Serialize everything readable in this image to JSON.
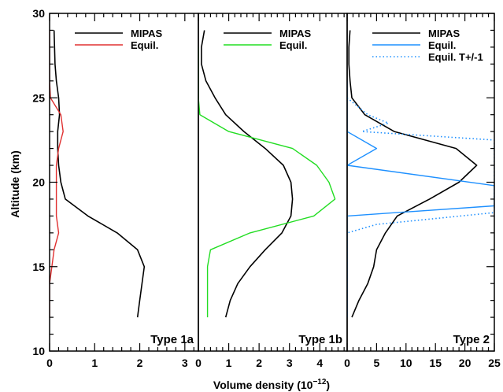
{
  "chart_data": {
    "type": "line",
    "ylabel": "Altitude (km)",
    "xlabel_main": "Volume density (10",
    "xlabel_sup": "−12",
    "xlabel_close": ")",
    "ylim": [
      10,
      30
    ],
    "yticks": [
      10,
      15,
      20,
      25,
      30
    ],
    "grid": false,
    "legend_position": "top-right",
    "panels": [
      {
        "label": "Type 1a",
        "xlim": [
          0,
          3.3
        ],
        "xticks": [
          0,
          1,
          2,
          3
        ],
        "series": [
          {
            "name": "MIPAS",
            "color": "#000000",
            "dash": "solid",
            "points": [
              [
                0.1,
                29
              ],
              [
                0.12,
                27
              ],
              [
                0.15,
                26
              ],
              [
                0.2,
                25
              ],
              [
                0.22,
                24
              ],
              [
                0.18,
                23
              ],
              [
                0.18,
                22
              ],
              [
                0.2,
                21
              ],
              [
                0.25,
                20
              ],
              [
                0.35,
                19
              ],
              [
                0.85,
                18
              ],
              [
                1.5,
                17
              ],
              [
                1.95,
                16
              ],
              [
                2.1,
                15
              ],
              [
                2.05,
                14
              ],
              [
                2.0,
                13
              ],
              [
                1.95,
                12
              ]
            ]
          },
          {
            "name": "Equil.",
            "color": "#e03030",
            "dash": "solid",
            "points": [
              [
                0.0,
                29
              ],
              [
                0.0,
                27
              ],
              [
                0.0,
                26
              ],
              [
                0.02,
                25
              ],
              [
                0.25,
                24
              ],
              [
                0.3,
                23
              ],
              [
                0.2,
                22
              ],
              [
                0.15,
                21
              ],
              [
                0.15,
                20
              ],
              [
                0.15,
                19
              ],
              [
                0.15,
                18
              ],
              [
                0.2,
                17
              ],
              [
                0.1,
                16
              ],
              [
                0.05,
                15
              ],
              [
                0.0,
                14
              ],
              [
                0.0,
                12
              ]
            ]
          }
        ]
      },
      {
        "label": "Type 1b",
        "xlim": [
          0,
          4.9
        ],
        "xticks": [
          0,
          1,
          2,
          3,
          4
        ],
        "series": [
          {
            "name": "MIPAS",
            "color": "#000000",
            "dash": "solid",
            "points": [
              [
                0.2,
                29
              ],
              [
                0.1,
                28
              ],
              [
                0.1,
                27
              ],
              [
                0.25,
                26
              ],
              [
                0.55,
                25
              ],
              [
                0.9,
                24
              ],
              [
                1.5,
                23
              ],
              [
                2.2,
                22
              ],
              [
                2.8,
                21
              ],
              [
                3.05,
                20
              ],
              [
                3.1,
                19
              ],
              [
                3.05,
                18
              ],
              [
                2.75,
                17
              ],
              [
                2.2,
                16
              ],
              [
                1.7,
                15
              ],
              [
                1.3,
                14
              ],
              [
                1.05,
                13
              ],
              [
                0.9,
                12
              ]
            ]
          },
          {
            "name": "Equil.",
            "color": "#22dd22",
            "dash": "solid",
            "points": [
              [
                0.0,
                28
              ],
              [
                0.0,
                26
              ],
              [
                0.0,
                25
              ],
              [
                0.05,
                24
              ],
              [
                1.0,
                23
              ],
              [
                3.1,
                22
              ],
              [
                3.9,
                21
              ],
              [
                4.3,
                20
              ],
              [
                4.5,
                19
              ],
              [
                3.8,
                18
              ],
              [
                1.7,
                17
              ],
              [
                0.4,
                16
              ],
              [
                0.3,
                15
              ],
              [
                0.3,
                13
              ],
              [
                0.3,
                12
              ]
            ]
          }
        ]
      },
      {
        "label": "Type 2",
        "xlim": [
          0,
          25
        ],
        "xticks": [
          0,
          5,
          10,
          15,
          20,
          25
        ],
        "series": [
          {
            "name": "MIPAS",
            "color": "#000000",
            "dash": "solid",
            "points": [
              [
                0.5,
                29
              ],
              [
                0.3,
                28
              ],
              [
                0.3,
                27
              ],
              [
                0.5,
                26
              ],
              [
                0.8,
                25
              ],
              [
                3.0,
                24
              ],
              [
                8.0,
                23
              ],
              [
                18.5,
                22
              ],
              [
                22.0,
                21
              ],
              [
                19.0,
                20
              ],
              [
                14.0,
                19
              ],
              [
                8.5,
                18
              ],
              [
                6.5,
                17
              ],
              [
                5.0,
                16
              ],
              [
                4.5,
                15
              ],
              [
                3.5,
                14
              ],
              [
                2.0,
                13
              ],
              [
                0.8,
                12
              ]
            ]
          },
          {
            "name": "Equil.",
            "color": "#1e90ff",
            "dash": "solid",
            "points": [
              [
                0.0,
                26
              ],
              [
                0.0,
                23
              ],
              [
                5.0,
                22
              ],
              [
                0.0,
                21
              ],
              [
                25.0,
                19.8
              ],
              [
                25.0,
                18.6
              ],
              [
                0.0,
                18
              ],
              [
                0.0,
                16
              ],
              [
                0.0,
                12
              ]
            ]
          },
          {
            "name": "Equil. T+/-1",
            "color": "#1e90ff",
            "dash": "dotted",
            "points": [
              [
                0.0,
                25
              ],
              [
                3.5,
                24
              ],
              [
                7.0,
                23.5
              ],
              [
                2.5,
                23
              ],
              [
                25.0,
                22.5
              ],
              [
                25.0,
                18.2
              ],
              [
                5.0,
                17.5
              ],
              [
                0.0,
                17
              ],
              [
                0.0,
                12
              ]
            ]
          }
        ]
      }
    ]
  }
}
